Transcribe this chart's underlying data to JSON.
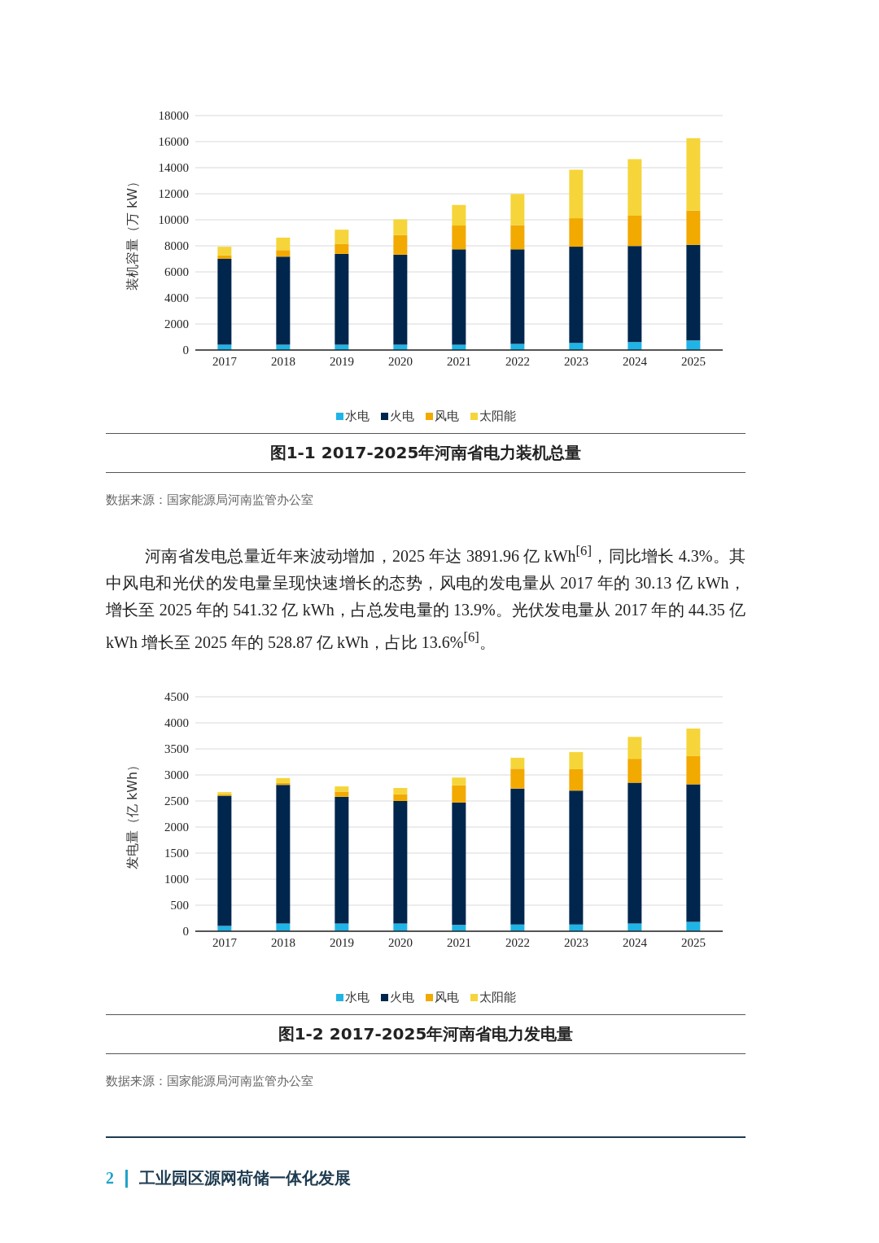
{
  "chart_data": [
    {
      "type": "bar",
      "title": "图1-1  2017-2025年河南省电力装机总量",
      "ylabel": "装机容量（万 kW）",
      "categories": [
        "2017",
        "2018",
        "2019",
        "2020",
        "2021",
        "2022",
        "2023",
        "2024",
        "2025"
      ],
      "stacked": true,
      "series": [
        {
          "name": "水电",
          "color": "#1fb4e6",
          "values": [
            400,
            400,
            400,
            400,
            410,
            470,
            550,
            610,
            730
          ]
        },
        {
          "name": "火电",
          "color": "#00264d",
          "values": [
            6600,
            6770,
            6980,
            6920,
            7320,
            7260,
            7380,
            7380,
            7350
          ]
        },
        {
          "name": "风电",
          "color": "#f2a900",
          "values": [
            260,
            500,
            780,
            1510,
            1830,
            1860,
            2190,
            2330,
            2620
          ]
        },
        {
          "name": "太阳能",
          "color": "#f5d53a",
          "values": [
            670,
            960,
            1080,
            1200,
            1580,
            2390,
            3730,
            4340,
            5570
          ]
        }
      ],
      "ylim": [
        0,
        18000
      ],
      "yticks": [
        0,
        2000,
        4000,
        6000,
        8000,
        10000,
        12000,
        14000,
        16000,
        18000
      ],
      "grid": "y",
      "legend": "bottom",
      "annotations": [
        "数据来源：国家能源局河南监管办公室",
        "河南省发电总量近年来波动增加，2025 年达 3891.96 亿 kWh$^{[6]}$，同比增长 4.3%。其中风电和光伏的发电量呈现快速增长的态势，风电的发电量从 2017 年的 30.13 亿 kWh，增长至 2025 年的 541.32 亿 kWh，占总发电量的 13.9%。光伏发电量从 2017 年的 44.35 亿 kWh 增长至 2025 年的 528.87 亿 kWh，占比 13.6%$^{[6]}$。"
      ]
    },
    {
      "type": "bar",
      "title": "图1-2  2017-2025年河南省电力发电量",
      "ylabel": "发电量（亿 kWh）",
      "categories": [
        "2017",
        "2018",
        "2019",
        "2020",
        "2021",
        "2022",
        "2023",
        "2024",
        "2025"
      ],
      "stacked": true,
      "series": [
        {
          "name": "水电",
          "color": "#1fb4e6",
          "values": [
            100,
            150,
            150,
            150,
            120,
            130,
            130,
            150,
            180
          ]
        },
        {
          "name": "火电",
          "color": "#00264d",
          "values": [
            2500,
            2660,
            2430,
            2350,
            2350,
            2610,
            2570,
            2700,
            2640
          ]
        },
        {
          "name": "风电",
          "color": "#f2a900",
          "values": [
            30,
            40,
            100,
            130,
            330,
            380,
            410,
            460,
            540
          ]
        },
        {
          "name": "太阳能",
          "color": "#f5d53a",
          "values": [
            40,
            90,
            100,
            120,
            150,
            210,
            330,
            420,
            530
          ]
        }
      ],
      "ylim": [
        0,
        4500
      ],
      "yticks": [
        0,
        500,
        1000,
        1500,
        2000,
        2500,
        3000,
        3500,
        4000,
        4500
      ],
      "grid": "y",
      "legend": "bottom",
      "annotations": [
        "数据来源：国家能源局河南监管办公室",
        "2",
        "工业园区源网荷储一体化发展"
      ]
    }
  ]
}
